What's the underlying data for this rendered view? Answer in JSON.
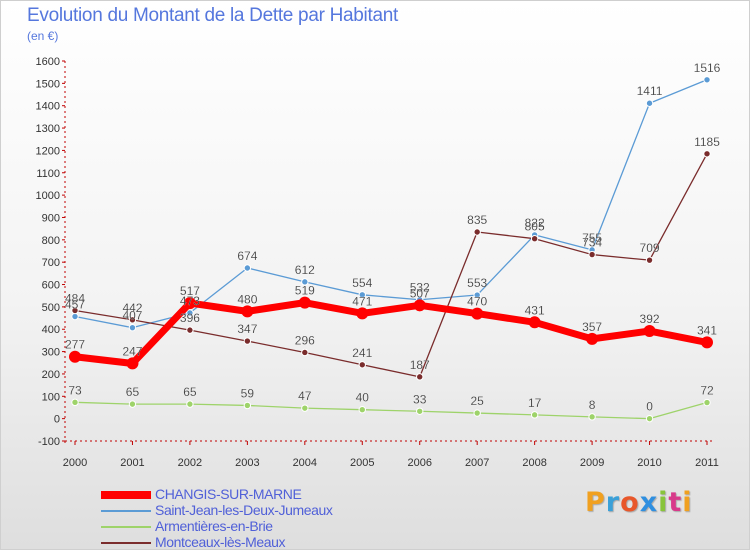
{
  "title": "Evolution du Montant de la Dette par Habitant",
  "unit": "(en €)",
  "logo_letters": [
    "P",
    "r",
    "o",
    "x",
    "i",
    "t",
    "i"
  ],
  "chart_data": {
    "type": "line",
    "x": [
      "2000",
      "2001",
      "2002",
      "2003",
      "2004",
      "2005",
      "2006",
      "2007",
      "2008",
      "2009",
      "2010",
      "2011"
    ],
    "ylim": [
      -100,
      1600
    ],
    "yticks": [
      -100,
      0,
      100,
      200,
      300,
      400,
      500,
      600,
      700,
      800,
      900,
      1000,
      1100,
      1200,
      1300,
      1400,
      1500,
      1600
    ],
    "grid": false,
    "legend_position": "bottom-left",
    "series": [
      {
        "name": "Saint-Jean-les-Deux-Jumeaux",
        "color": "#5b9bd5",
        "values": [
          457,
          407,
          473,
          674,
          612,
          554,
          532,
          553,
          822,
          755,
          1411,
          1516
        ],
        "labels": [
          "457",
          "407",
          "473",
          "674",
          "612",
          "554",
          "532",
          "553",
          "822",
          "755",
          "1411",
          "1516"
        ]
      },
      {
        "name": "Montceaux-lès-Meaux",
        "color": "#7a2c2c",
        "values": [
          484,
          442,
          396,
          347,
          296,
          241,
          187,
          835,
          805,
          734,
          709,
          1185
        ],
        "labels": [
          "484",
          "442",
          "396",
          "347",
          "296",
          "241",
          "187",
          "835",
          "805",
          "734",
          "709",
          "1185"
        ]
      },
      {
        "name": "Armentières-en-Brie",
        "color": "#9ed36a",
        "values": [
          73,
          65,
          65,
          59,
          47,
          40,
          33,
          25,
          17,
          8,
          0,
          72
        ],
        "labels": [
          "73",
          "65",
          "65",
          "59",
          "47",
          "40",
          "33",
          "25",
          "17",
          "8",
          "0",
          "72"
        ]
      },
      {
        "name": "CHANGIS-SUR-MARNE",
        "color": "#ff0000",
        "values": [
          277,
          247,
          517,
          480,
          519,
          471,
          507,
          470,
          431,
          357,
          392,
          341
        ],
        "labels": [
          "277",
          "247",
          "517",
          "480",
          "519",
          "471",
          "507",
          "470",
          "431",
          "357",
          "392",
          "341"
        ]
      }
    ],
    "legend": [
      {
        "name": "CHANGIS-SUR-MARNE",
        "color": "#ff0000"
      },
      {
        "name": "Saint-Jean-les-Deux-Jumeaux",
        "color": "#5b9bd5"
      },
      {
        "name": "Armentières-en-Brie",
        "color": "#9ed36a"
      },
      {
        "name": "Montceaux-lès-Meaux",
        "color": "#7a2c2c"
      }
    ]
  }
}
